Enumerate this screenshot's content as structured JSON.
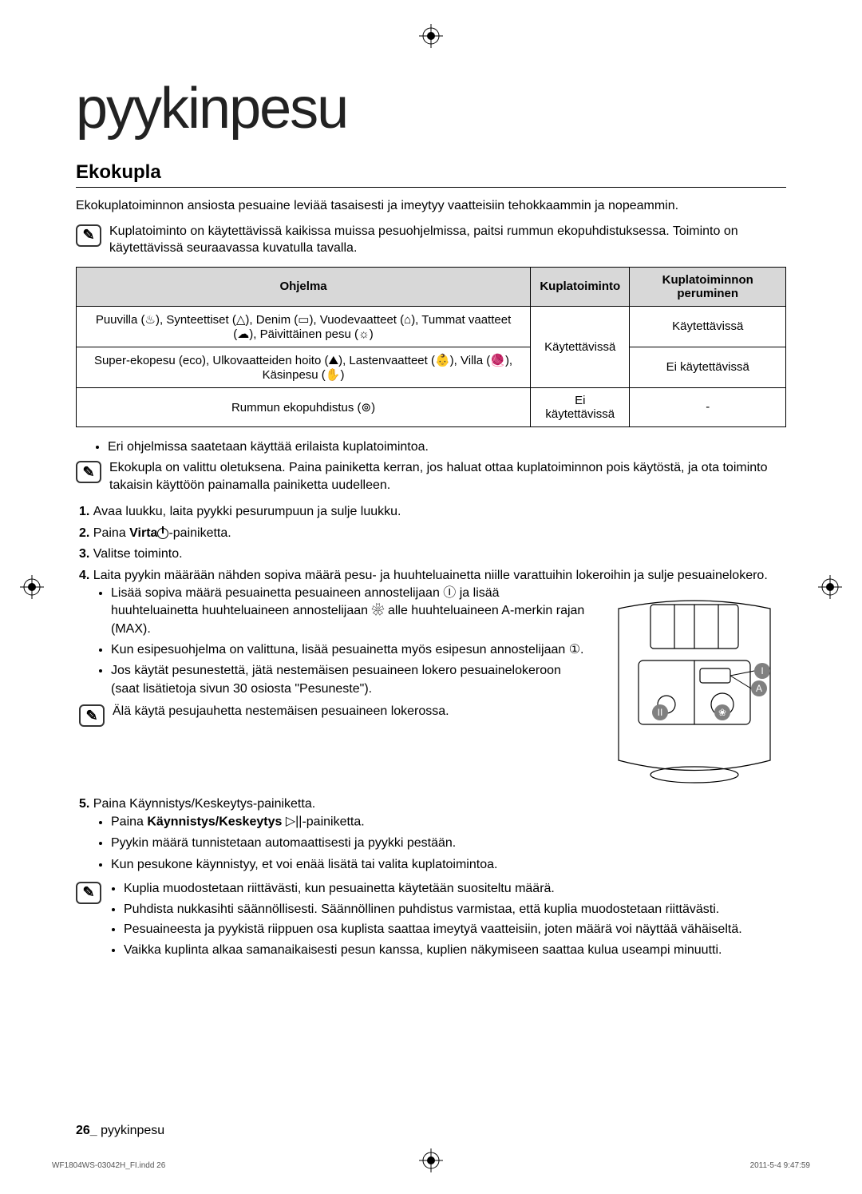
{
  "page": {
    "main_title": "pyykinpesu",
    "section_title": "Ekokupla",
    "intro": "Ekokuplatoiminnon ansiosta pesuaine leviää tasaisesti ja imeytyy vaatteisiin tehokkaammin ja nopeammin.",
    "note1": "Kuplatoiminto on käytettävissä kaikissa muissa pesuohjelmissa, paitsi rummun ekopuhdistuksessa. Toiminto on käytettävissä seuraavassa kuvatulla tavalla."
  },
  "table": {
    "headers": [
      "Ohjelma",
      "Kuplatoiminto",
      "Kuplatoiminnon peruminen"
    ],
    "rows": [
      {
        "program_html": "Puuvilla (<span class='sym'>♨</span>), Synteettiset (<span class='sym'>△</span>), Denim (<span class='sym'>▭</span>), Vuodevaatteet (<span class='sym'>⌂</span>), Tummat vaatteet (<span class='sym'>☁</span>), Päivittäinen pesu (<span class='sym'>☼</span>)",
        "cancel": "Käytettävissä"
      },
      {
        "program_html": "Super-ekopesu (<span class='sym'>eco</span>), Ulkovaatteiden hoito (<span class='sym'>⛰</span>), Lastenvaatteet (<span class='sym'>👶</span>), Villa (<span class='sym'>🧶</span>), Käsinpesu (<span class='sym'>✋</span>)",
        "cancel": "Ei käytettävissä"
      },
      {
        "program_html": "Rummun ekopuhdistus (<span class='sym'>⊚</span>)",
        "bubble": "Ei käytettävissä",
        "cancel": "-"
      }
    ],
    "bubble_shared": "Käytettävissä"
  },
  "bullets_after_table": [
    "Eri ohjelmissa saatetaan käyttää erilaista kuplatoimintoa."
  ],
  "note2": "Ekokupla on valittu oletuksena. Paina painiketta kerran, jos haluat ottaa kuplatoiminnon pois käytöstä, ja ota toiminto takaisin käyttöön painamalla painiketta uudelleen.",
  "steps": {
    "s1": "Avaa luukku, laita pyykki pesurumpuun ja sulje luukku.",
    "s2_pre": "Paina ",
    "s2_bold": "Virta",
    "s2_post": "-painiketta.",
    "s3": "Valitse toiminto.",
    "s4": "Laita pyykin määrään nähden sopiva määrä pesu- ja huuhteluainetta niille varattuihin lokeroihin ja sulje pesuainelokero.",
    "s4_bullets": [
      "Lisää sopiva määrä pesuainetta pesuaineen annostelijaan Ⓘ ja lisää huuhteluainetta huuhteluaineen annostelijaan ❀ alle huuhteluaineen A-merkin rajan (MAX).",
      "Kun esipesuohjelma on valittuna, lisää pesuainetta myös esipesun annostelijaan ①.",
      "Jos käytät pesunestettä, jätä nestemäisen pesuaineen lokero pesuainelokeroon (saat lisätietoja sivun 30 osiosta \"Pesuneste\")."
    ],
    "note3": "Älä käytä pesujauhetta nestemäisen pesuaineen lokerossa.",
    "s5": "Paina Käynnistys/Keskeytys-painiketta.",
    "s5_bullets_pre": "Paina ",
    "s5_bullets_bold": "Käynnistys/Keskeytys ",
    "s5_bullets_post": "-painiketta.",
    "s5_b2": "Pyykin määrä tunnistetaan automaattisesti ja pyykki pestään.",
    "s5_b3": "Kun pesukone käynnistyy, et voi enää lisätä tai valita kuplatoimintoa."
  },
  "final_note_bullets": [
    "Kuplia muodostetaan riittävästi, kun pesuainetta käytetään suositeltu määrä.",
    "Puhdista nukkasihti säännöllisesti.  Säännöllinen puhdistus varmistaa, että kuplia muodostetaan riittävästi.",
    "Pesuaineesta ja pyykistä riippuen osa kuplista saattaa imeytyä vaatteisiin, joten määrä voi näyttää vähäiseltä.",
    "Vaikka kuplinta alkaa samanaikaisesti pesun kanssa, kuplien näkymiseen saattaa kulua useampi minuutti."
  ],
  "footer": {
    "page_num": "26_",
    "label": "pyykinpesu"
  },
  "print": {
    "left": "WF1804WS-03042H_FI.indd   26",
    "right": "2011-5-4   9:47:59"
  },
  "diagram": {
    "labels": {
      "I": "I",
      "II": "II",
      "A": "A"
    },
    "colors": {
      "stroke": "#000000",
      "label_bg": "#808080",
      "label_fg": "#ffffff"
    }
  }
}
